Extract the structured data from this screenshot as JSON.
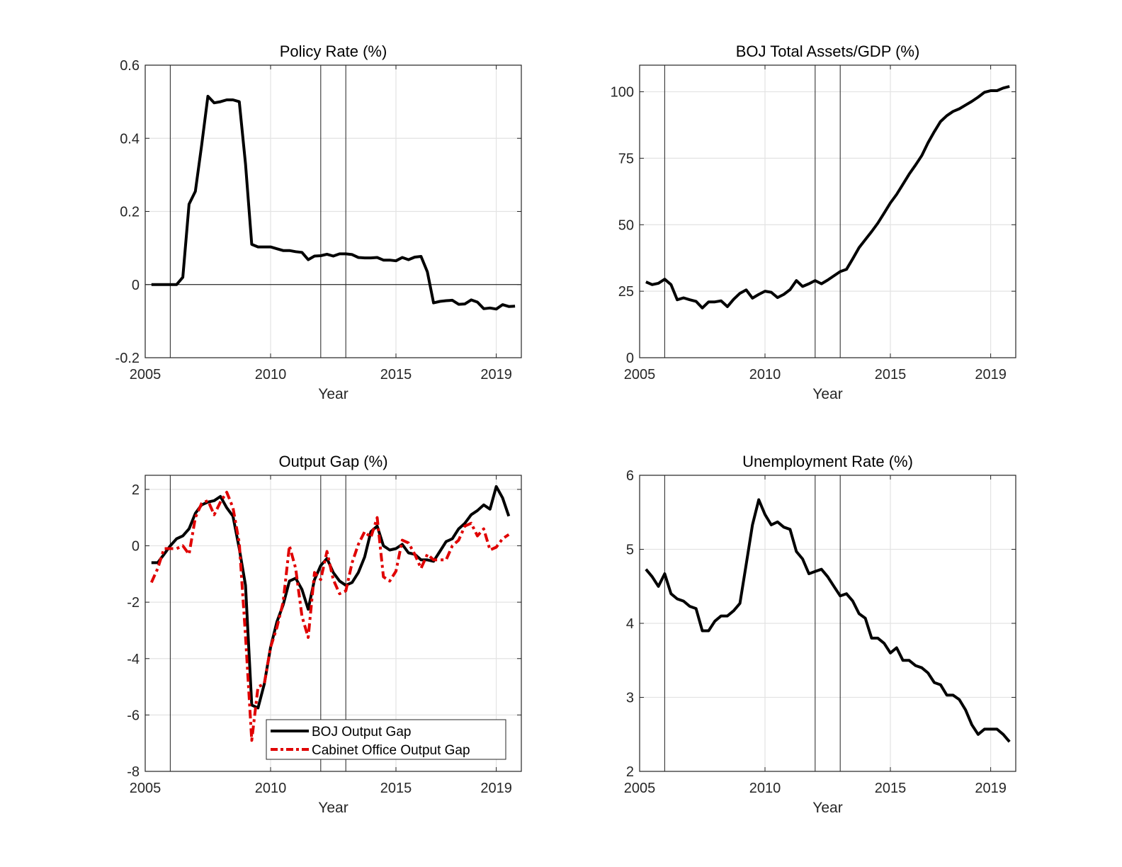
{
  "chart_data": [
    {
      "type": "line",
      "title": "Policy Rate (%)",
      "xlabel": "Year",
      "ylabel": "",
      "xlim": [
        2005,
        2020
      ],
      "ylim": [
        -0.2,
        0.6
      ],
      "xticks": [
        2005,
        2010,
        2015,
        2019
      ],
      "xtick_labels": [
        "2005",
        "2010",
        "2015",
        "2019"
      ],
      "yticks": [
        -0.2,
        0,
        0.2,
        0.4,
        0.6
      ],
      "ytick_labels": [
        "-0.2",
        "0",
        "0.2",
        "0.4",
        "0.6"
      ],
      "grid": true,
      "zero_line": true,
      "vertical_markers": [
        2006,
        2012,
        2013
      ],
      "x_start": 2005.25,
      "x_step": 0.25,
      "series": [
        {
          "name": "Policy Rate",
          "color": "#000000",
          "style": "solid",
          "values": [
            0,
            0,
            0,
            0,
            0,
            0.02,
            0.22,
            0.255,
            0.38,
            0.515,
            0.497,
            0.5,
            0.505,
            0.505,
            0.5,
            0.33,
            0.11,
            0.103,
            0.103,
            0.103,
            0.098,
            0.093,
            0.093,
            0.09,
            0.088,
            0.068,
            0.078,
            0.079,
            0.083,
            0.078,
            0.084,
            0.084,
            0.082,
            0.074,
            0.073,
            0.073,
            0.074,
            0.067,
            0.067,
            0.065,
            0.074,
            0.068,
            0.075,
            0.077,
            0.035,
            -0.05,
            -0.046,
            -0.044,
            -0.043,
            -0.054,
            -0.053,
            -0.042,
            -0.048,
            -0.066,
            -0.064,
            -0.067,
            -0.055,
            -0.06,
            -0.059
          ]
        }
      ]
    },
    {
      "type": "line",
      "title": "BOJ Total Assets/GDP (%)",
      "xlabel": "Year",
      "ylabel": "",
      "xlim": [
        2005,
        2020
      ],
      "ylim": [
        0,
        110
      ],
      "xticks": [
        2005,
        2010,
        2015,
        2019
      ],
      "xtick_labels": [
        "2005",
        "2010",
        "2015",
        "2019"
      ],
      "yticks": [
        0,
        25,
        50,
        75,
        100
      ],
      "ytick_labels": [
        "0",
        "25",
        "50",
        "75",
        "100"
      ],
      "grid": true,
      "zero_line": false,
      "vertical_markers": [
        2006,
        2012,
        2013
      ],
      "x_start": 2005.25,
      "x_step": 0.25,
      "series": [
        {
          "name": "BOJ Total Assets/GDP",
          "color": "#000000",
          "style": "solid",
          "values": [
            28.5,
            27.5,
            28,
            29.5,
            27.5,
            21.8,
            22.5,
            21.8,
            21.2,
            18.7,
            21,
            21,
            21.4,
            19.2,
            22,
            24.2,
            25.5,
            22.4,
            23.8,
            25,
            24.6,
            22.6,
            23.8,
            25.6,
            29,
            26.8,
            27.8,
            29,
            27.8,
            29.2,
            30.8,
            32.4,
            33.2,
            37.2,
            41.4,
            44.4,
            47.4,
            50.6,
            54.4,
            58.2,
            61.4,
            65.2,
            69,
            72.4,
            76,
            80.8,
            85,
            88.8,
            91,
            92.6,
            93.6,
            95,
            96.4,
            98,
            99.8,
            100.4,
            100.4,
            101.4,
            102
          ]
        }
      ]
    },
    {
      "type": "line",
      "title": "Output Gap (%)",
      "xlabel": "Year",
      "ylabel": "",
      "xlim": [
        2005,
        2020
      ],
      "ylim": [
        -8,
        2.5
      ],
      "xticks": [
        2005,
        2010,
        2015,
        2019
      ],
      "xtick_labels": [
        "2005",
        "2010",
        "2015",
        "2019"
      ],
      "yticks": [
        -8,
        -6,
        -4,
        -2,
        0,
        2
      ],
      "ytick_labels": [
        "-8",
        "-6",
        "-4",
        "-2",
        "0",
        "2"
      ],
      "grid": true,
      "zero_line": false,
      "vertical_markers": [
        2006,
        2012,
        2013
      ],
      "legend_position": "bottom-right",
      "x_start": 2005.25,
      "x_step": 0.25,
      "series": [
        {
          "name": "BOJ Output Gap",
          "color": "#000000",
          "style": "solid",
          "values": [
            -0.6,
            -0.6,
            -0.3,
            0.0,
            0.25,
            0.35,
            0.6,
            1.15,
            1.45,
            1.55,
            1.6,
            1.75,
            1.35,
            1.05,
            -0.1,
            -1.4,
            -5.65,
            -5.75,
            -4.9,
            -3.6,
            -2.7,
            -2.1,
            -1.25,
            -1.15,
            -1.55,
            -2.25,
            -1.2,
            -0.7,
            -0.45,
            -0.95,
            -1.25,
            -1.4,
            -1.3,
            -0.95,
            -0.4,
            0.5,
            0.7,
            0.0,
            -0.15,
            -0.1,
            0.05,
            -0.25,
            -0.3,
            -0.5,
            -0.5,
            -0.55,
            -0.2,
            0.15,
            0.25,
            0.6,
            0.8,
            1.1,
            1.25,
            1.45,
            1.3,
            2.1,
            1.7,
            1.05
          ]
        },
        {
          "name": "Cabinet Office Output Gap",
          "color": "#e00000",
          "style": "dashdot",
          "values": [
            -1.3,
            -0.8,
            -0.1,
            -0.1,
            -0.1,
            0.0,
            -0.3,
            1.0,
            1.5,
            1.6,
            1.1,
            1.55,
            1.9,
            1.35,
            0.1,
            -3.2,
            -6.9,
            -5.0,
            -4.9,
            -3.6,
            -2.9,
            -2.0,
            0.0,
            -0.8,
            -2.5,
            -3.25,
            -0.95,
            -1.2,
            -0.2,
            -1.2,
            -1.7,
            -1.6,
            -0.6,
            0.05,
            0.5,
            0.3,
            1.0,
            -1.1,
            -1.25,
            -0.9,
            0.2,
            0.1,
            -0.3,
            -0.8,
            -0.3,
            -0.5,
            -0.5,
            -0.5,
            0.0,
            0.2,
            0.7,
            0.8,
            0.35,
            0.6,
            -0.15,
            -0.05,
            0.25,
            0.4
          ]
        }
      ]
    },
    {
      "type": "line",
      "title": "Unemployment Rate (%)",
      "xlabel": "Year",
      "ylabel": "",
      "xlim": [
        2005,
        2020
      ],
      "ylim": [
        2,
        6
      ],
      "xticks": [
        2005,
        2010,
        2015,
        2019
      ],
      "xtick_labels": [
        "2005",
        "2010",
        "2015",
        "2019"
      ],
      "yticks": [
        2,
        3,
        4,
        5,
        6
      ],
      "ytick_labels": [
        "2",
        "3",
        "4",
        "5",
        "6"
      ],
      "grid": true,
      "zero_line": false,
      "vertical_markers": [
        2006,
        2012,
        2013
      ],
      "x_start": 2005.25,
      "x_step": 0.25,
      "series": [
        {
          "name": "Unemployment Rate",
          "color": "#000000",
          "style": "solid",
          "values": [
            4.73,
            4.63,
            4.5,
            4.67,
            4.4,
            4.33,
            4.3,
            4.23,
            4.2,
            3.9,
            3.9,
            4.03,
            4.1,
            4.1,
            4.17,
            4.27,
            4.8,
            5.33,
            5.67,
            5.47,
            5.33,
            5.37,
            5.3,
            5.27,
            4.97,
            4.87,
            4.67,
            4.7,
            4.73,
            4.63,
            4.5,
            4.37,
            4.4,
            4.3,
            4.13,
            4.07,
            3.8,
            3.8,
            3.73,
            3.6,
            3.67,
            3.5,
            3.5,
            3.43,
            3.4,
            3.33,
            3.2,
            3.17,
            3.03,
            3.03,
            2.97,
            2.83,
            2.63,
            2.5,
            2.57,
            2.57,
            2.57,
            2.5,
            2.4
          ]
        }
      ]
    }
  ]
}
